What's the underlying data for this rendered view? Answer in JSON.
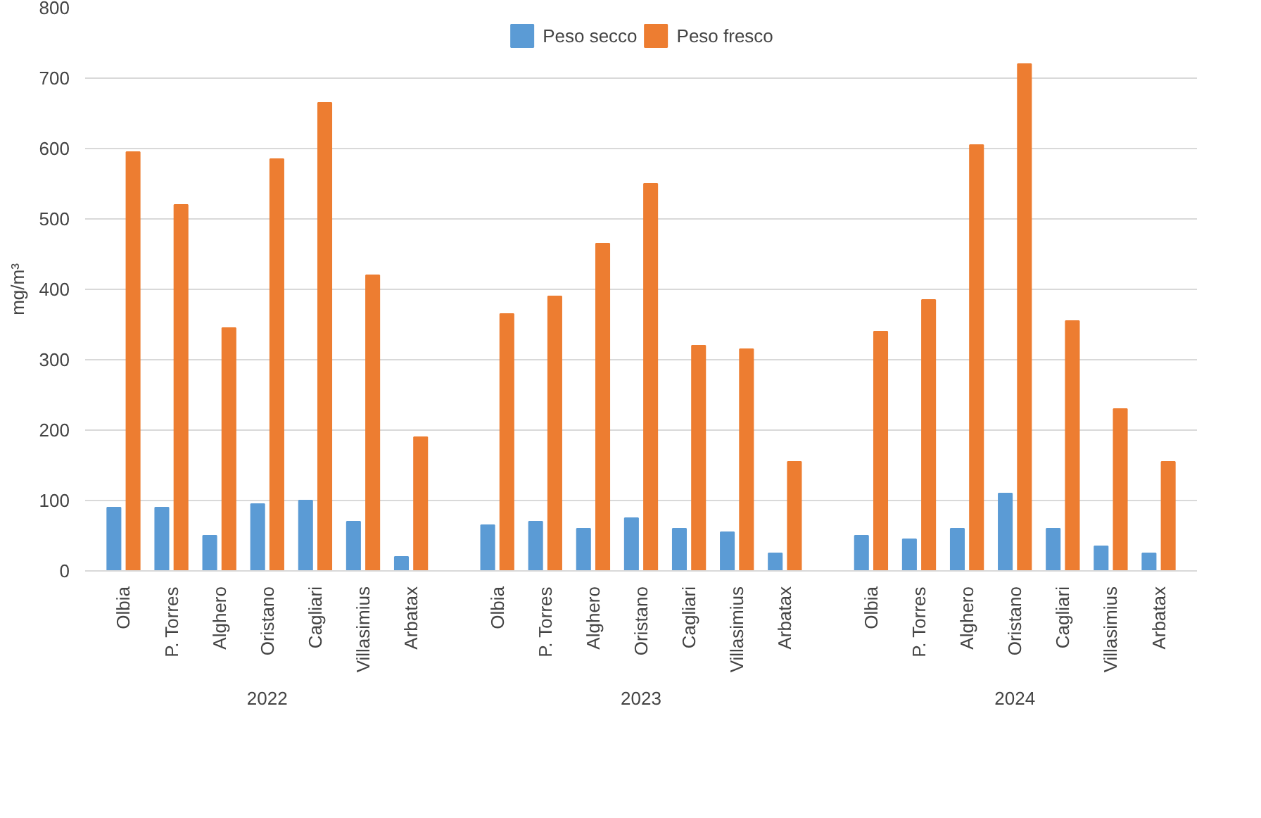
{
  "chart_data": {
    "type": "bar",
    "ylabel": "mg/m³",
    "categories": [
      "Olbia",
      "P. Torres",
      "Alghero",
      "Oristano",
      "Cagliari",
      "Villasimius",
      "Arbatax",
      "Olbia",
      "P. Torres",
      "Alghero",
      "Oristano",
      "Cagliari",
      "Villasimius",
      "Arbatax",
      "Olbia",
      "P. Torres",
      "Alghero",
      "Oristano",
      "Cagliari",
      "Villasimius",
      "Arbatax"
    ],
    "annotations": [
      "2022",
      "2023",
      "2024"
    ],
    "series": [
      {
        "name": "Peso secco",
        "color": "#5b9bd5",
        "values": [
          90,
          90,
          50,
          95,
          100,
          70,
          20,
          65,
          70,
          60,
          75,
          60,
          55,
          25,
          50,
          45,
          60,
          110,
          60,
          35,
          25
        ]
      },
      {
        "name": "Peso fresco",
        "color": "#ed7d31",
        "values": [
          595,
          520,
          345,
          585,
          665,
          420,
          190,
          365,
          390,
          465,
          550,
          320,
          315,
          155,
          340,
          385,
          605,
          720,
          355,
          230,
          155
        ]
      }
    ],
    "ylim": [
      0,
      800
    ],
    "yticks": [
      0,
      100,
      200,
      300,
      400,
      500,
      600,
      700,
      800
    ],
    "grid": "y",
    "legend": "top"
  }
}
